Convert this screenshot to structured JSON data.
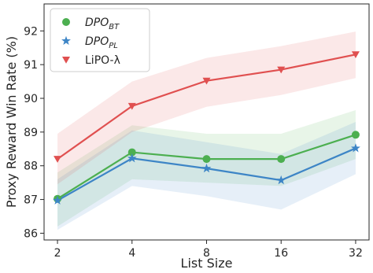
{
  "chart_data": {
    "type": "line",
    "xlabel": "List Size",
    "ylabel": "Proxy Reward Win Rate (%)",
    "x": [
      2,
      4,
      8,
      16,
      32
    ],
    "x_tick_labels": [
      "2",
      "4",
      "8",
      "16",
      "32"
    ],
    "x_scale": "log2",
    "ylim": [
      85.8,
      92.8
    ],
    "y_ticks": [
      86,
      87,
      88,
      89,
      90,
      91,
      92
    ],
    "y_tick_labels": [
      "86",
      "87",
      "88",
      "89",
      "90",
      "91",
      "92"
    ],
    "grid": false,
    "legend_position": "top-left",
    "series": [
      {
        "name": "DPO_BT",
        "legend_main": "DPO",
        "legend_sub": "BT",
        "marker": "circle",
        "color": "#4caf50",
        "values": [
          87.02,
          88.4,
          88.2,
          88.2,
          88.92
        ],
        "band_lower": [
          86.2,
          87.6,
          87.5,
          87.4,
          88.2
        ],
        "band_upper": [
          87.8,
          89.2,
          88.95,
          88.95,
          89.65
        ]
      },
      {
        "name": "DPO_PL",
        "legend_main": "DPO",
        "legend_sub": "PL",
        "marker": "star",
        "color": "#3d85c6",
        "values": [
          86.97,
          88.22,
          87.92,
          87.57,
          88.52
        ],
        "band_lower": [
          86.1,
          87.4,
          87.1,
          86.7,
          87.75
        ],
        "band_upper": [
          87.6,
          89.05,
          88.7,
          88.35,
          89.3
        ]
      },
      {
        "name": "LiPO-λ",
        "legend_main": "LiPO-λ",
        "legend_sub": "",
        "marker": "triangle-down",
        "color": "#e05050",
        "values": [
          88.2,
          89.77,
          90.52,
          90.85,
          91.3
        ],
        "band_lower": [
          87.45,
          89.0,
          89.75,
          90.1,
          90.6
        ],
        "band_upper": [
          88.95,
          90.5,
          91.2,
          91.55,
          91.98
        ]
      }
    ]
  }
}
